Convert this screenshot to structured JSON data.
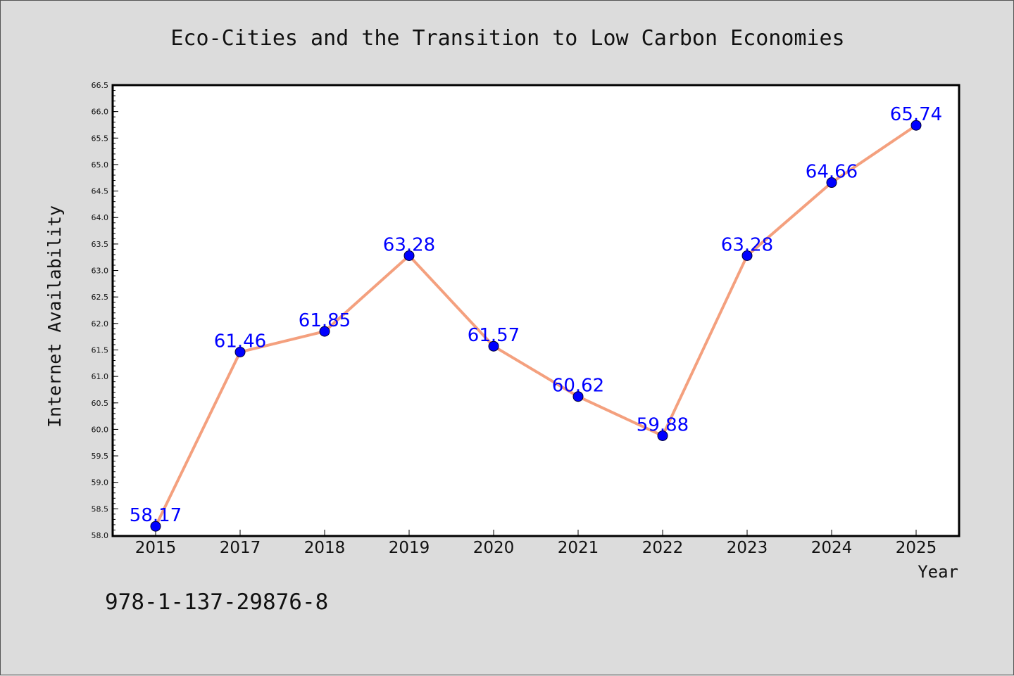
{
  "chart_data": {
    "type": "line",
    "title": "Eco-Cities and the Transition to Low Carbon Economies",
    "xlabel": "Year",
    "ylabel": "Internet Availability",
    "categories": [
      "2015",
      "2017",
      "2018",
      "2019",
      "2020",
      "2021",
      "2022",
      "2023",
      "2024",
      "2025"
    ],
    "series": [
      {
        "values": [
          58.17,
          61.46,
          61.85,
          63.28,
          61.57,
          60.62,
          59.88,
          63.28,
          64.66,
          65.74
        ]
      }
    ],
    "data_labels": [
      "58.17",
      "61.46",
      "61.85",
      "63.28",
      "61.57",
      "60.62",
      "59.88",
      "63.28",
      "64.66",
      "65.74"
    ],
    "ylim": [
      58.0,
      66.5
    ],
    "yticks": [
      "58.0",
      "58.5",
      "59.0",
      "59.5",
      "60.0",
      "60.5",
      "61.0",
      "61.5",
      "62.0",
      "62.5",
      "63.0",
      "63.5",
      "64.0",
      "64.5",
      "65.0",
      "65.5",
      "66.0",
      "66.5"
    ],
    "grid": false,
    "colors": {
      "line": "#f4a07e",
      "marker": "#0000ff",
      "label": "#0000ff",
      "background": "#dcdcdc",
      "plot_bg": "#ffffff"
    }
  },
  "annotation": {
    "isbn": "978-1-137-29876-8"
  }
}
